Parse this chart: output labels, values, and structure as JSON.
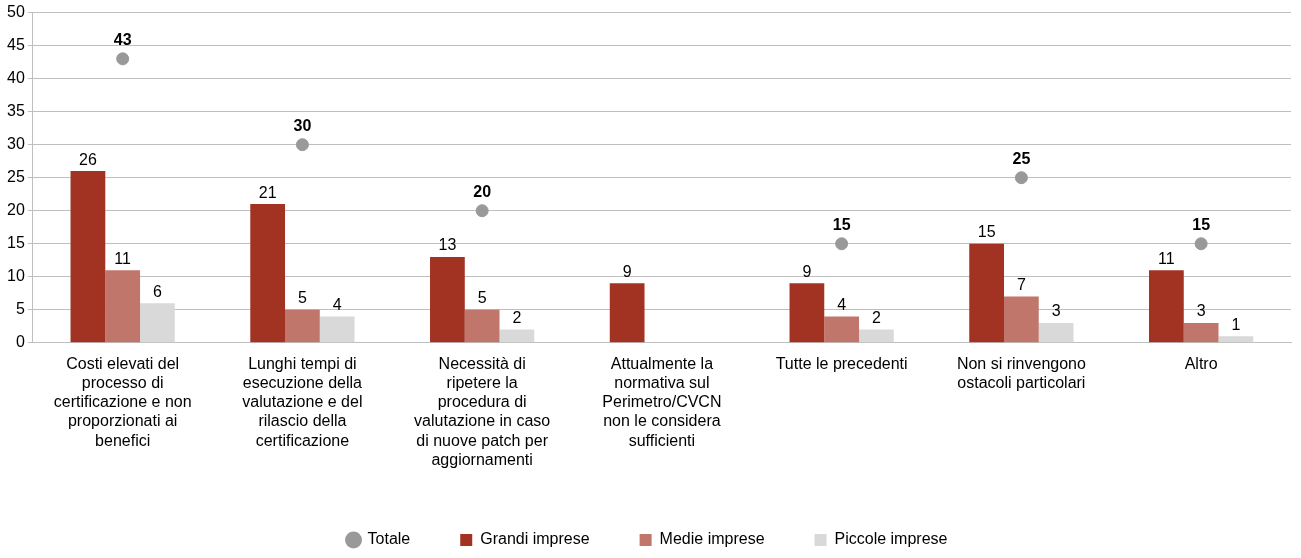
{
  "chart_data": {
    "type": "bar",
    "categories": [
      "Costi elevati del processo di certificazione e non proporzionati ai benefici",
      "Lunghi tempi di esecuzione della valutazione e del rilascio della certificazione",
      "Necessità di ripetere la procedura di valutazione in caso di nuove patch per aggiornamenti",
      "Attualmente la normativa sul Perimetro/CVCN non le considera sufficienti",
      "Tutte le precedenti",
      "Non si rinvengono ostacoli particolari",
      "Altro"
    ],
    "series": [
      {
        "name": "Grandi imprese",
        "color": "#a23222",
        "values": [
          26,
          21,
          13,
          9,
          9,
          15,
          11
        ]
      },
      {
        "name": "Medie imprese",
        "color": "#c0766b",
        "values": [
          11,
          5,
          5,
          null,
          4,
          7,
          3
        ]
      },
      {
        "name": "Piccole imprese",
        "color": "#d9d9d9",
        "values": [
          6,
          4,
          2,
          null,
          2,
          3,
          1
        ]
      },
      {
        "name": "Totale",
        "type": "scatter",
        "color": "#999999",
        "marker": "circle",
        "x": [
          "Costi elevati del processo di certificazione e non proporzionati ai benefici",
          "Lunghi tempi di esecuzione della valutazione e del rilascio della certificazione",
          "Necessità di ripetere la procedura di valutazione in caso di nuove patch per aggiornamenti",
          "Attualmente la normativa sul Perimetro/CVCN non le considera sufficienti",
          "Tutte le precedenti",
          "Non si rinvengono ostacoli particolari",
          "Altro"
        ],
        "values": [
          43,
          30,
          20,
          null,
          15,
          25,
          15
        ]
      }
    ],
    "ylim": [
      0,
      50
    ],
    "yticks": [
      0,
      5,
      10,
      15,
      20,
      25,
      30,
      35,
      40,
      45,
      50
    ],
    "grid": "y",
    "legend": "bottom",
    "data_labels": true
  }
}
